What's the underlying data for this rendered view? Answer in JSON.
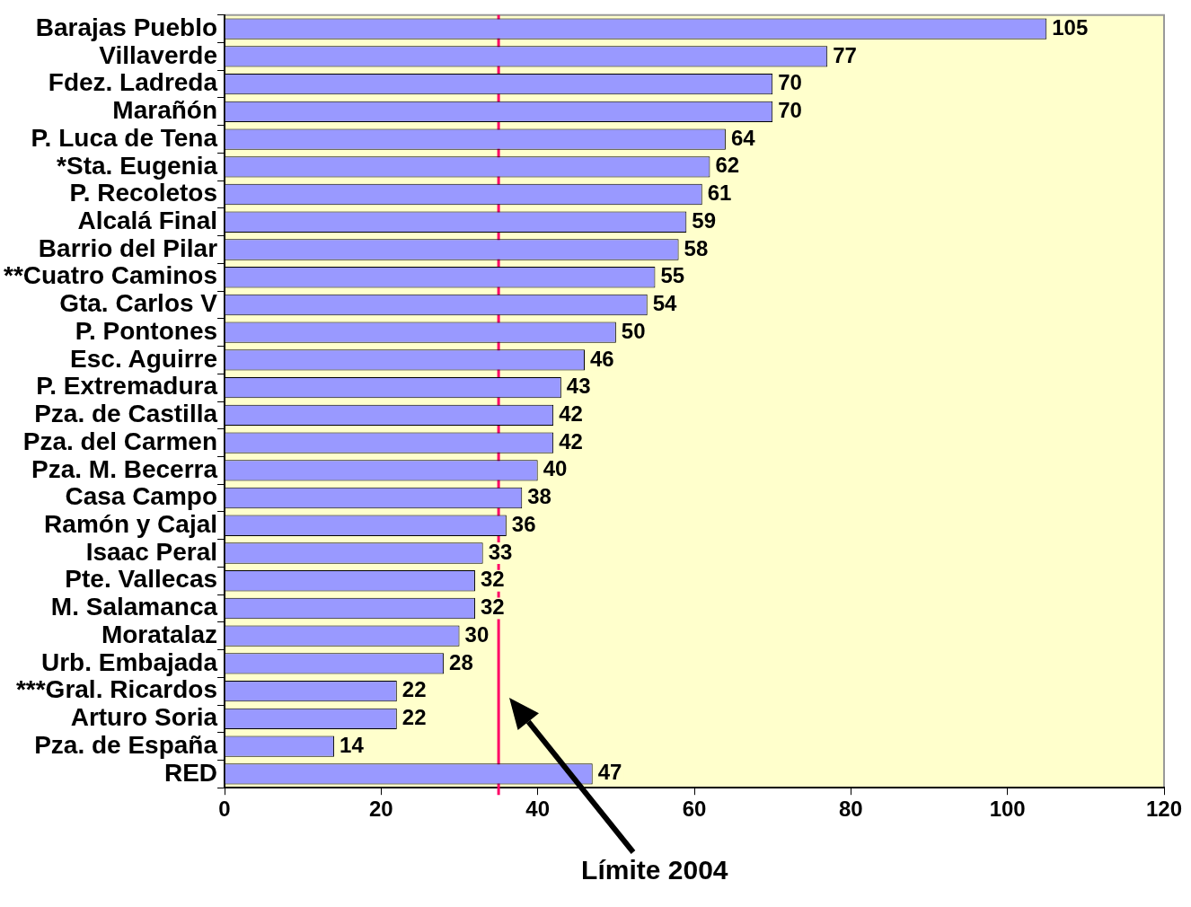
{
  "chart_data": {
    "type": "bar",
    "orientation": "horizontal",
    "categories": [
      "Barajas Pueblo",
      "Villaverde",
      "Fdez. Ladreda",
      "Marañón",
      "P. Luca de Tena",
      "*Sta. Eugenia",
      "P. Recoletos",
      "Alcalá Final",
      "Barrio del Pilar",
      "**Cuatro Caminos",
      "Gta. Carlos V",
      "P. Pontones",
      "Esc. Aguirre",
      "P. Extremadura",
      "Pza. de Castilla",
      "Pza. del Carmen",
      "Pza. M. Becerra",
      "Casa Campo",
      "Ramón y Cajal",
      "Isaac Peral",
      "Pte. Vallecas",
      "M. Salamanca",
      "Moratalaz",
      "Urb. Embajada",
      "***Gral. Ricardos",
      "Arturo Soria",
      "Pza. de España",
      "RED"
    ],
    "values": [
      105,
      77,
      70,
      70,
      64,
      62,
      61,
      59,
      58,
      55,
      54,
      50,
      46,
      43,
      42,
      42,
      40,
      38,
      36,
      33,
      32,
      32,
      30,
      28,
      22,
      22,
      14,
      47
    ],
    "color": "#9999ff",
    "xlim": [
      0,
      120
    ],
    "xticks": [
      0,
      20,
      40,
      60,
      80,
      100,
      120
    ],
    "ref_lines": [
      {
        "axis": "x",
        "value": 35,
        "color": "#ff0066"
      }
    ],
    "annotations": [
      "Límite 2004"
    ],
    "data_labels": true,
    "grid": false,
    "legend": false
  }
}
